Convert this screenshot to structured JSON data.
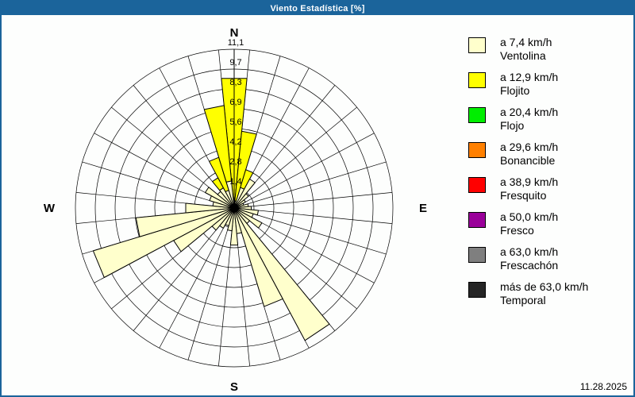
{
  "window": {
    "title": "Viento Estadística [%]",
    "date": "11.28.2025"
  },
  "colors": {
    "titlebar": "#1B649B",
    "window_border": "#1B649B",
    "background": "#FDFEFD",
    "grid": "#000000",
    "ventolina": "#FFFFCC",
    "flojito": "#FFFF00",
    "flojo": "#00EE00",
    "bonancible": "#FF8000",
    "fresquito": "#FF0000",
    "fresco": "#9A009A",
    "frescachon": "#7F7F7F",
    "temporal": "#252525"
  },
  "compass": {
    "north": "N",
    "south": "S",
    "east": "E",
    "west": "W"
  },
  "chart_data": {
    "type": "bar",
    "subtype": "windrose-polar-stacked",
    "units": "%",
    "sector_width_deg": 11.25,
    "num_sectors": 32,
    "max_value": 11.1,
    "ring_values": [
      1.4,
      2.8,
      4.2,
      5.6,
      6.9,
      8.3,
      9.7,
      11.1
    ],
    "ring_labels": [
      "1,4",
      "2,8",
      "4,2",
      "5,6",
      "6,9",
      "8,3",
      "9,7",
      "11,1"
    ],
    "directions": [
      "N",
      "NbE",
      "NNE",
      "NEbN",
      "NE",
      "NEbE",
      "ENE",
      "EbN",
      "E",
      "EbS",
      "ESE",
      "SEbE",
      "SE",
      "SEbS",
      "SSE",
      "SbE",
      "S",
      "SbW",
      "SSW",
      "SWbS",
      "SW",
      "SWbW",
      "WSW",
      "WbS",
      "W",
      "WbN",
      "WNW",
      "NWbW",
      "NW",
      "NWbN",
      "NNW",
      "NbW"
    ],
    "series": [
      {
        "name": "Ventolina",
        "label": "a 7,4 km/h",
        "color": "#FFFFCC",
        "values": [
          0.5,
          0.5,
          1.5,
          2.3,
          1.3,
          0.9,
          0.7,
          1.0,
          1.2,
          1.7,
          1.4,
          2.2,
          1.4,
          10.5,
          7.2,
          1.8,
          2.6,
          1.6,
          1.3,
          1.6,
          2.0,
          4.8,
          10.3,
          6.9,
          3.4,
          1.5,
          1.8,
          2.3,
          1.5,
          1.6,
          1.3,
          1.9
        ]
      },
      {
        "name": "Flojito",
        "label": "a 12,9 km/h",
        "color": "#FFFF00",
        "values": [
          8.6,
          4.9,
          1.3,
          0,
          0,
          0,
          0,
          0,
          0,
          0,
          0,
          0,
          0,
          0,
          0,
          0,
          0,
          0,
          0,
          0,
          0,
          0,
          0,
          0,
          0,
          0,
          0,
          0,
          0,
          0.8,
          2.4,
          5.3
        ]
      }
    ],
    "layout": {
      "center_x": 293,
      "center_y": 243,
      "outer_radius_px": 200,
      "grid_on": true,
      "legend_position": "right"
    }
  },
  "legend": {
    "items": [
      {
        "speed": "a 7,4 km/h",
        "name": "Ventolina",
        "color": "#FFFFCC"
      },
      {
        "speed": "a 12,9 km/h",
        "name": "Flojito",
        "color": "#FFFF00"
      },
      {
        "speed": "a 20,4 km/h",
        "name": "Flojo",
        "color": "#00EE00"
      },
      {
        "speed": "a 29,6 km/h",
        "name": "Bonancible",
        "color": "#FF8000"
      },
      {
        "speed": "a 38,9 km/h",
        "name": "Fresquito",
        "color": "#FF0000"
      },
      {
        "speed": "a 50,0 km/h",
        "name": "Fresco",
        "color": "#9A009A"
      },
      {
        "speed": "a 63,0 km/h",
        "name": "Frescachón",
        "color": "#7F7F7F"
      },
      {
        "speed": "más de 63,0 km/h",
        "name": "Temporal",
        "color": "#252525"
      }
    ]
  }
}
